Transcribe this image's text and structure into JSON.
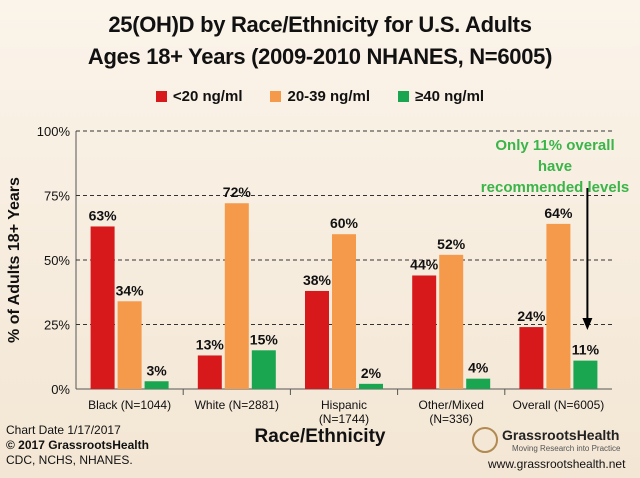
{
  "chart_data": {
    "type": "bar",
    "title": "25(OH)D by Race/Ethnicity for U.S. Adults",
    "subtitle": "Ages 18+ Years (2009-2010 NHANES, N=6005)",
    "xlabel": "Race/Ethnicity",
    "ylabel": "% of Adults 18+ Years",
    "ylim": [
      0,
      100
    ],
    "yticks": [
      "0%",
      "25%",
      "50%",
      "75%",
      "100%"
    ],
    "ytick_values": [
      0,
      25,
      50,
      75,
      100
    ],
    "grid": "dashed horizontal",
    "legend_position": "top-center",
    "categories": [
      "Black (N=1044)",
      "White (N=2881)",
      "Hispanic (N=1744)",
      "Other/Mixed (N=336)",
      "Overall (N=6005)"
    ],
    "series": [
      {
        "name": "<20 ng/ml",
        "color": "#d7191c",
        "values": [
          63,
          13,
          38,
          44,
          24
        ],
        "labels": [
          "63%",
          "13%",
          "38%",
          "44%",
          "24%"
        ]
      },
      {
        "name": "20-39 ng/ml",
        "color": "#f59a4a",
        "values": [
          34,
          72,
          60,
          52,
          64
        ],
        "labels": [
          "34%",
          "72%",
          "60%",
          "52%",
          "64%"
        ]
      },
      {
        "name": "≥40 ng/ml",
        "color": "#1aa650",
        "values": [
          3,
          15,
          2,
          4,
          11
        ],
        "labels": [
          "3%",
          "15%",
          "2%",
          "4%",
          "11%"
        ]
      }
    ],
    "annotation": {
      "line1": "Only 11% overall have",
      "line2": "recommended levels",
      "color": "#3bb54a"
    }
  },
  "footer": {
    "chart_date": "Chart Date 1/17/2017",
    "copyright": "© 2017 GrassrootsHealth",
    "sources": "CDC, NCHS, NHANES."
  },
  "logo": {
    "name": "GrassrootsHealth",
    "tagline": "Moving Research into Practice",
    "url": "www.grassrootshealth.net"
  }
}
